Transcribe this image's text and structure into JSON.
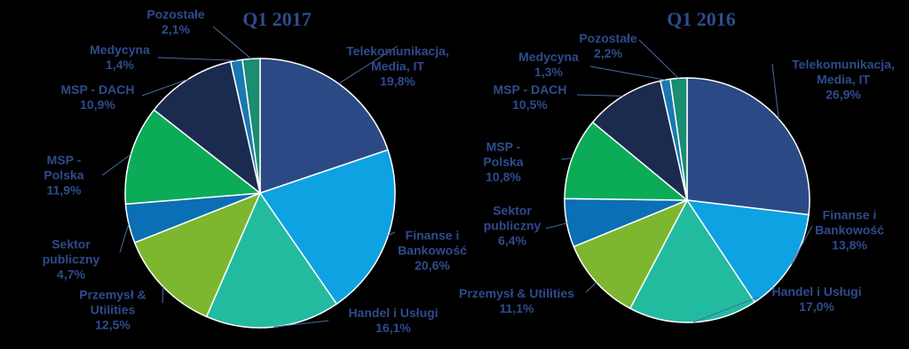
{
  "chart_data": [
    {
      "type": "pie",
      "title": "Q1 2017",
      "categories": [
        "Telekomunikacja, Media, IT",
        "Finanse i Bankowość",
        "Handel i Usługi",
        "Przemysł & Utilities",
        "Sektor publiczny",
        "MSP - Polska",
        "MSP - DACH",
        "Medycyna",
        "Pozostałe"
      ],
      "values": [
        19.8,
        20.6,
        16.1,
        12.5,
        4.7,
        11.9,
        10.9,
        1.4,
        2.1
      ],
      "value_labels": [
        "19,8%",
        "20,6%",
        "16,1%",
        "12,5%",
        "4,7%",
        "11,9%",
        "10,9%",
        "1,4%",
        "2,1%"
      ],
      "colors": [
        "#2b4a85",
        "#0ea2e2",
        "#22bba0",
        "#7cb72f",
        "#0a6fb5",
        "#0bab58",
        "#1b2b4f",
        "#1b78b0",
        "#1a8d72"
      ]
    },
    {
      "type": "pie",
      "title": "Q1 2016",
      "categories": [
        "Telekomunikacja, Media, IT",
        "Finanse i Bankowość",
        "Handel i Usługi",
        "Przemysł & Utilities",
        "Sektor publiczny",
        "MSP - Polska",
        "MSP - DACH",
        "Medycyna",
        "Pozostałe"
      ],
      "values": [
        26.9,
        13.8,
        17.0,
        11.1,
        6.4,
        10.8,
        10.5,
        1.3,
        2.2
      ],
      "value_labels": [
        "26,9%",
        "13,8%",
        "17,0%",
        "11,1%",
        "6,4%",
        "10,8%",
        "10,5%",
        "1,3%",
        "2,2%"
      ],
      "colors": [
        "#2b4a85",
        "#0ea2e2",
        "#22bba0",
        "#7cb72f",
        "#0a6fb5",
        "#0bab58",
        "#1b2b4f",
        "#1b78b0",
        "#1a8d72"
      ]
    }
  ]
}
